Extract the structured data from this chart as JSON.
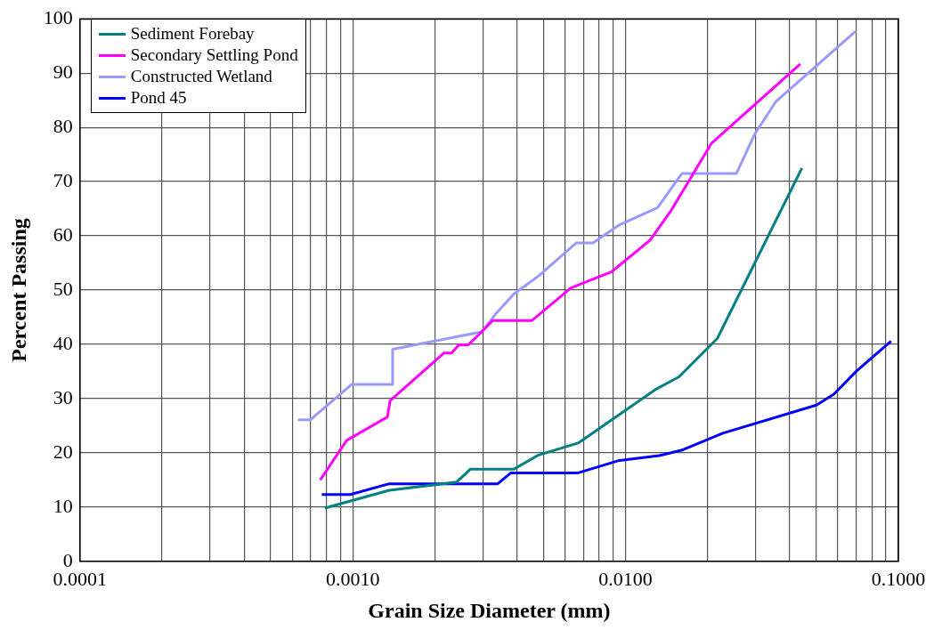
{
  "chart_data": {
    "type": "line",
    "xlabel": "Grain Size Diameter (mm)",
    "ylabel": "Percent Passing",
    "log": "x",
    "grid": true,
    "legend": "top left",
    "marker": "none",
    "line_style": "solid",
    "xlim": [
      0.0001,
      0.1
    ],
    "ylim": [
      0,
      100
    ],
    "xticks": [
      {
        "value": 0.0001,
        "label": "0.0001"
      },
      {
        "value": 0.0002,
        "label": null
      },
      {
        "value": 0.0003,
        "label": null
      },
      {
        "value": 0.0004,
        "label": null
      },
      {
        "value": 0.0005,
        "label": null
      },
      {
        "value": 0.0006,
        "label": null
      },
      {
        "value": 0.0007,
        "label": null
      },
      {
        "value": 0.0008,
        "label": null
      },
      {
        "value": 0.0009,
        "label": null
      },
      {
        "value": 0.001,
        "label": "0.0010"
      },
      {
        "value": 0.002,
        "label": null
      },
      {
        "value": 0.003,
        "label": null
      },
      {
        "value": 0.004,
        "label": null
      },
      {
        "value": 0.005,
        "label": null
      },
      {
        "value": 0.006,
        "label": null
      },
      {
        "value": 0.007,
        "label": null
      },
      {
        "value": 0.008,
        "label": null
      },
      {
        "value": 0.009,
        "label": null
      },
      {
        "value": 0.01,
        "label": "0.0100"
      },
      {
        "value": 0.02,
        "label": null
      },
      {
        "value": 0.03,
        "label": null
      },
      {
        "value": 0.04,
        "label": null
      },
      {
        "value": 0.05,
        "label": null
      },
      {
        "value": 0.06,
        "label": null
      },
      {
        "value": 0.07,
        "label": null
      },
      {
        "value": 0.08,
        "label": null
      },
      {
        "value": 0.09,
        "label": null
      },
      {
        "value": 0.1,
        "label": "0.1000"
      }
    ],
    "yticks": [
      0,
      10,
      20,
      30,
      40,
      50,
      60,
      70,
      80,
      90,
      100
    ],
    "series": [
      {
        "name": "Sediment Forebay",
        "color": "#008080",
        "x": [
          0.00079,
          0.00136,
          0.0024,
          0.0027,
          0.0039,
          0.0048,
          0.0067,
          0.0128,
          0.0157,
          0.0217,
          0.0443
        ],
        "values": [
          9.8,
          13.1,
          14.6,
          17,
          17,
          19.6,
          21.8,
          31.6,
          34,
          41.1,
          72.5
        ]
      },
      {
        "name": "Secondary Settling Pond",
        "color": "#ff00ff",
        "x": [
          0.00076,
          0.00095,
          0.00134,
          0.00137,
          0.00216,
          0.0023,
          0.00245,
          0.00265,
          0.0029,
          0.00326,
          0.00454,
          0.0063,
          0.0089,
          0.0123,
          0.0147,
          0.0206,
          0.0437
        ],
        "values": [
          15,
          22.3,
          26.6,
          29.6,
          38.4,
          38.4,
          39.9,
          39.9,
          41.8,
          44.4,
          44.4,
          50.4,
          53.4,
          59.2,
          64.7,
          77,
          91.7
        ]
      },
      {
        "name": "Constructed Wetland",
        "color": "#9999ff",
        "x": [
          0.00063,
          0.0007,
          0.00099,
          0.00139,
          0.0014,
          0.00297,
          0.00334,
          0.0039,
          0.0048,
          0.0066,
          0.0076,
          0.0094,
          0.0131,
          0.0161,
          0.0255,
          0.0297,
          0.0355,
          0.0697
        ],
        "values": [
          26.1,
          26.1,
          32.6,
          32.6,
          39.1,
          42.3,
          45.6,
          49.3,
          52.6,
          58.7,
          58.7,
          61.9,
          65.2,
          71.5,
          71.5,
          78.7,
          84.7,
          97.7
        ]
      },
      {
        "name": "Pond 45",
        "color": "#0000ff",
        "x": [
          0.00077,
          0.00098,
          0.00136,
          0.0034,
          0.0038,
          0.0067,
          0.0095,
          0.0133,
          0.0161,
          0.0227,
          0.0501,
          0.058,
          0.0703,
          0.094
        ],
        "values": [
          12.3,
          12.3,
          14.3,
          14.3,
          16.3,
          16.3,
          18.6,
          19.5,
          20.5,
          23.6,
          28.8,
          30.8,
          35.1,
          40.6
        ]
      }
    ]
  }
}
